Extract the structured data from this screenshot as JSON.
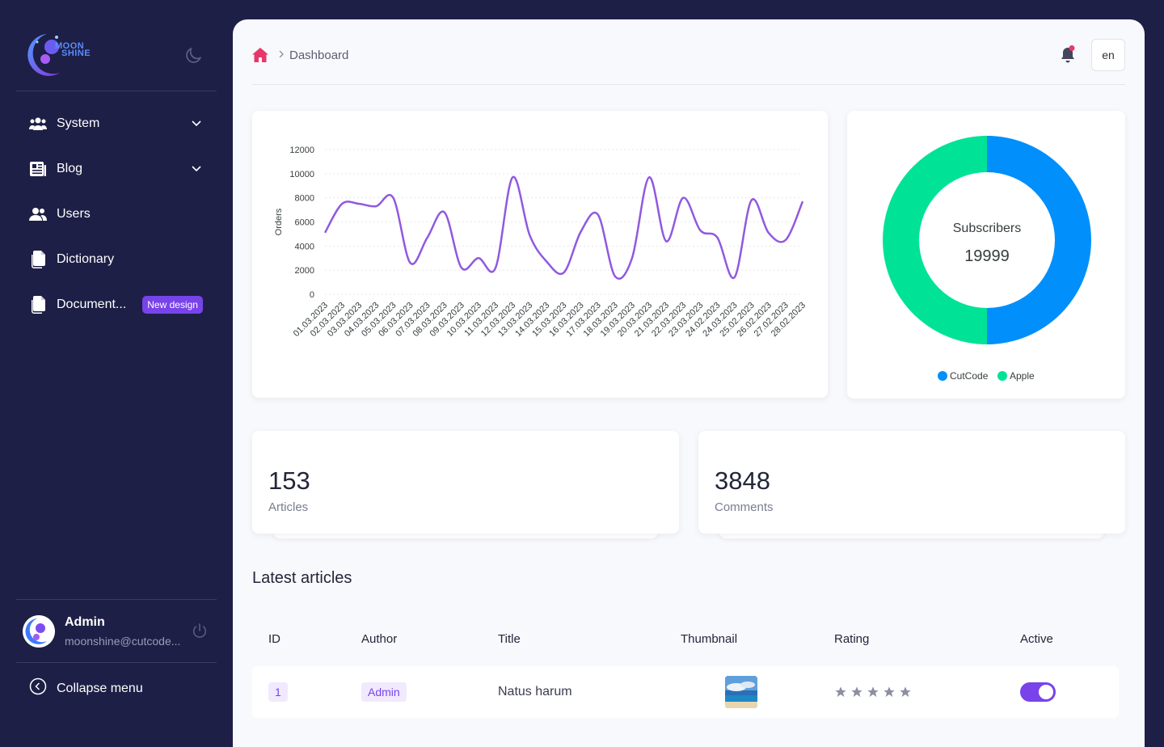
{
  "sidebar": {
    "logo_text_line1": "MOON",
    "logo_text_line2": "SHINE",
    "menu": [
      {
        "label": "System",
        "icon": "users-group-icon",
        "expandable": true
      },
      {
        "label": "Blog",
        "icon": "newspaper-icon",
        "expandable": true
      },
      {
        "label": "Users",
        "icon": "users-icon",
        "expandable": false
      },
      {
        "label": "Dictionary",
        "icon": "documents-icon",
        "expandable": false
      },
      {
        "label": "Document...",
        "icon": "documents-icon",
        "expandable": false,
        "badge": "New design"
      }
    ],
    "user": {
      "name": "Admin",
      "email": "moonshine@cutcode..."
    },
    "collapse_label": "Collapse menu"
  },
  "header": {
    "breadcrumb": "Dashboard",
    "lang": "en"
  },
  "chart_data": [
    {
      "type": "line",
      "ylabel": "Orders",
      "xlabel": "",
      "ylim": [
        0,
        12000
      ],
      "yticks": [
        0,
        2000,
        4000,
        6000,
        8000,
        10000,
        12000
      ],
      "color": "#9059e0",
      "categories": [
        "01.03.2023",
        "02.03.2023",
        "03.03.2023",
        "04.03.2023",
        "05.03.2023",
        "06.03.2023",
        "07.03.2023",
        "08.03.2023",
        "09.03.2023",
        "10.03.2023",
        "11.03.2023",
        "12.03.2023",
        "13.03.2023",
        "14.03.2023",
        "15.03.2023",
        "16.03.2023",
        "17.03.2023",
        "18.03.2023",
        "19.03.2023",
        "20.03.2023",
        "21.03.2023",
        "22.03.2023",
        "23.03.2023",
        "24.02.2023",
        "24.03.2023",
        "25.02.2023",
        "26.02.2023",
        "27.02.2023",
        "28.02.2023"
      ],
      "values": [
        5100,
        7500,
        7500,
        7300,
        8000,
        2600,
        4700,
        6800,
        2200,
        3000,
        2200,
        9700,
        4900,
        2700,
        1800,
        5200,
        6600,
        1500,
        3000,
        9700,
        4400,
        8000,
        5300,
        4700,
        1400,
        7800,
        5100,
        4500,
        7700
      ]
    },
    {
      "type": "pie",
      "title": "Subscribers",
      "total": "19999",
      "legend": [
        "CutCode",
        "Apple"
      ],
      "values": [
        50,
        50
      ],
      "colors": [
        "#008ffb",
        "#00e396"
      ]
    }
  ],
  "stats": [
    {
      "value": "153",
      "label": "Articles"
    },
    {
      "value": "3848",
      "label": "Comments"
    }
  ],
  "articles": {
    "title": "Latest articles",
    "columns": [
      "ID",
      "Author",
      "Title",
      "Thumbnail",
      "Rating",
      "Active"
    ],
    "rows": [
      {
        "id": "1",
        "author": "Admin",
        "title": "Natus harum",
        "rating": 0,
        "active": true
      }
    ]
  },
  "colors": {
    "accent": "#7843e9",
    "sidebar": "#1e1f46"
  }
}
